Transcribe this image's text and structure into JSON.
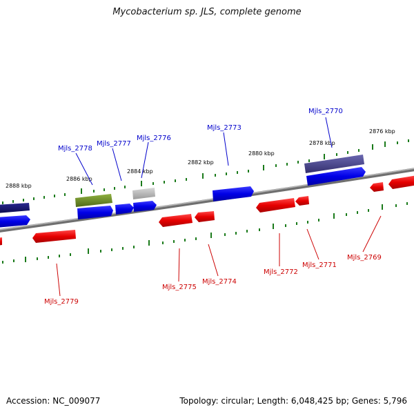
{
  "title": "Mycobacterium sp. JLS, complete genome",
  "footer": {
    "accession": "Accession: NC_009077",
    "summary": "Topology: circular; Length: 6,048,425 bp; Genes: 5,796"
  },
  "colors": {
    "forward_gene": "#0000e6",
    "reverse_gene": "#e60000",
    "forward_label": "#0000cc",
    "reverse_label": "#cc0000",
    "tick": "#1a7a1a",
    "backbone": "#888888",
    "navy_feature": "#12126b",
    "green_feature": "#6b8e23",
    "purple_feature": "#4b4890",
    "gray_feature": "#b5b5b5"
  },
  "scale_labels": [
    "2876 kbp",
    "2878 kbp",
    "2880 kbp",
    "2882 kbp",
    "2884 kbp",
    "2886 kbp",
    "2888 kbp"
  ],
  "forward_gene_labels": [
    "Mjls_2770",
    "Mjls_2773",
    "Mjls_2776",
    "Mjls_2777",
    "Mjls_2778"
  ],
  "reverse_gene_labels": [
    "Mjls_2769",
    "Mjls_2771",
    "Mjls_2772",
    "Mjls_2774",
    "Mjls_2775",
    "Mjls_2779"
  ]
}
